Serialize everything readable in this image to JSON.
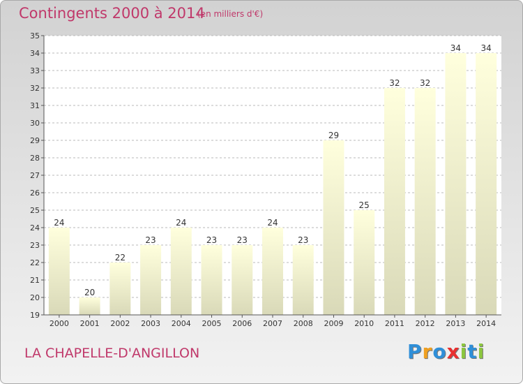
{
  "chart_data": {
    "type": "bar",
    "title": "Contingents 2000 à 2014",
    "unit": "(en milliers d'€)",
    "commune": "LA CHAPELLE-D'ANGILLON",
    "categories": [
      "2000",
      "2001",
      "2002",
      "2003",
      "2004",
      "2005",
      "2006",
      "2007",
      "2008",
      "2009",
      "2010",
      "2011",
      "2012",
      "2013",
      "2014"
    ],
    "values": [
      24,
      20,
      22,
      23,
      24,
      23,
      23,
      24,
      23,
      29,
      25,
      32,
      32,
      34,
      34
    ],
    "ylim": [
      19,
      35
    ],
    "yticks": [
      19,
      20,
      21,
      22,
      23,
      24,
      25,
      26,
      27,
      28,
      29,
      30,
      31,
      32,
      33,
      34,
      35
    ],
    "grid": true,
    "colors": {
      "bar_top": "#ffffdd",
      "bar_bottom": "#d9d9b8",
      "grid": "#b8b8b8",
      "text": "#c0386a"
    }
  },
  "logo": {
    "letters": [
      "P",
      "r",
      "o",
      "x",
      "i",
      "t",
      "i"
    ],
    "colors": [
      "#2f8fd8",
      "#f0a020",
      "#2f8fd8",
      "#e83030",
      "#8cc63f",
      "#2f8fd8",
      "#8cc63f"
    ]
  }
}
